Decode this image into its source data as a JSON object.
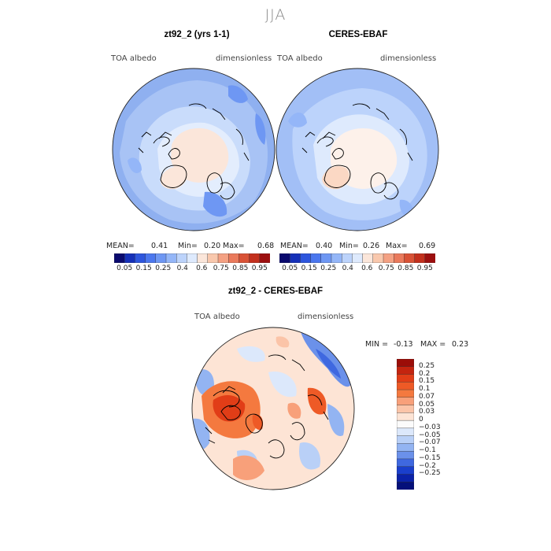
{
  "figure": {
    "season": "JJA",
    "variable_label": "TOA albedo",
    "units_label": "dimensionless"
  },
  "chart_data": [
    {
      "type": "heatmap",
      "projection": "north polar stereographic",
      "title": "zt92_2 (yrs 1-1)",
      "left_label": "TOA albedo",
      "right_label": "dimensionless",
      "stats": {
        "mean_label": "MEAN=",
        "mean": "0.41",
        "min_label": "Min=",
        "min": "0.20",
        "max_label": "Max=",
        "max": "0.68"
      },
      "colorbar": {
        "ticks": [
          "0.05",
          "0.15",
          "0.25",
          "0.4",
          "0.6",
          "0.75",
          "0.85",
          "0.95"
        ],
        "colors": [
          "#0a0a6e",
          "#1530b8",
          "#2e56dd",
          "#4b77ee",
          "#6e97f3",
          "#94b6f8",
          "#bcd3fb",
          "#deeafd",
          "#fbe6da",
          "#f9c8ad",
          "#f4a183",
          "#ea7a5c",
          "#d95236",
          "#c3301d",
          "#9c0f0f"
        ]
      }
    },
    {
      "type": "heatmap",
      "projection": "north polar stereographic",
      "title": "CERES-EBAF",
      "left_label": "TOA albedo",
      "right_label": "dimensionless",
      "stats": {
        "mean_label": "MEAN=",
        "mean": "0.40",
        "min_label": "Min=",
        "min": "0.26",
        "max_label": "Max=",
        "max": "0.69"
      },
      "colorbar": {
        "ticks": [
          "0.05",
          "0.15",
          "0.25",
          "0.4",
          "0.6",
          "0.75",
          "0.85",
          "0.95"
        ],
        "colors": [
          "#0a0a6e",
          "#1530b8",
          "#2e56dd",
          "#4b77ee",
          "#6e97f3",
          "#94b6f8",
          "#bcd3fb",
          "#deeafd",
          "#fbe6da",
          "#f9c8ad",
          "#f4a183",
          "#ea7a5c",
          "#d95236",
          "#c3301d",
          "#9c0f0f"
        ]
      }
    },
    {
      "type": "heatmap",
      "projection": "north polar stereographic",
      "title": "zt92_2 - CERES-EBAF",
      "left_label": "TOA albedo",
      "right_label": "dimensionless",
      "stats": {
        "min_label": "MIN =",
        "min": "-0.13",
        "max_label": "MAX =",
        "max": "0.23"
      },
      "colorbar": {
        "ticks": [
          "0.25",
          "0.2",
          "0.15",
          "0.1",
          "0.07",
          "0.05",
          "0.03",
          "0",
          "−0.03",
          "−0.05",
          "−0.07",
          "−0.1",
          "−0.15",
          "−0.2",
          "−0.25"
        ],
        "colors": [
          "#9c0d08",
          "#c4240f",
          "#e13d17",
          "#ee5a26",
          "#f4793f",
          "#f8a07a",
          "#fbc4a8",
          "#fde4d5",
          "#fbfbfb",
          "#dce8fb",
          "#b9d0f7",
          "#93b4f2",
          "#6b91ea",
          "#3f68e0",
          "#1a3fcc",
          "#0b22a8",
          "#05107a"
        ]
      }
    }
  ]
}
